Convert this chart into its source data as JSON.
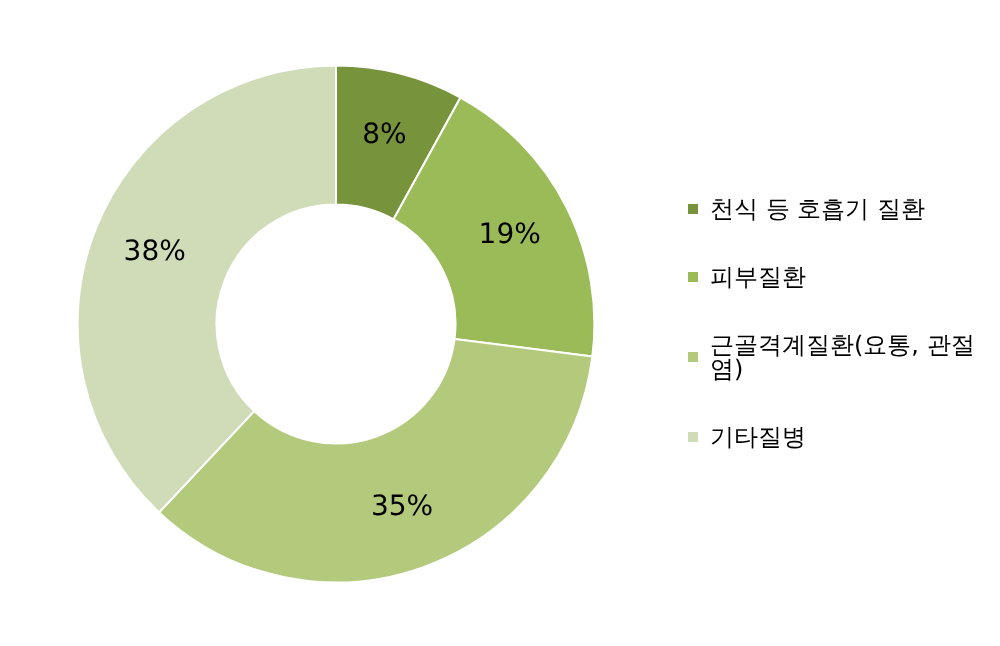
{
  "chart_data": {
    "type": "donut",
    "categories": [
      "천식 등 호흡기 질환",
      "피부질환",
      "근골격계질환(요통, 관절염)",
      "기타질병"
    ],
    "values": [
      8,
      19,
      35,
      38
    ],
    "colors": [
      "#77933c",
      "#9bbb59",
      "#b3ca7d",
      "#d0dcb8"
    ],
    "value_labels": [
      "8%",
      "19%",
      "35%",
      "38%"
    ],
    "legend": "right"
  }
}
